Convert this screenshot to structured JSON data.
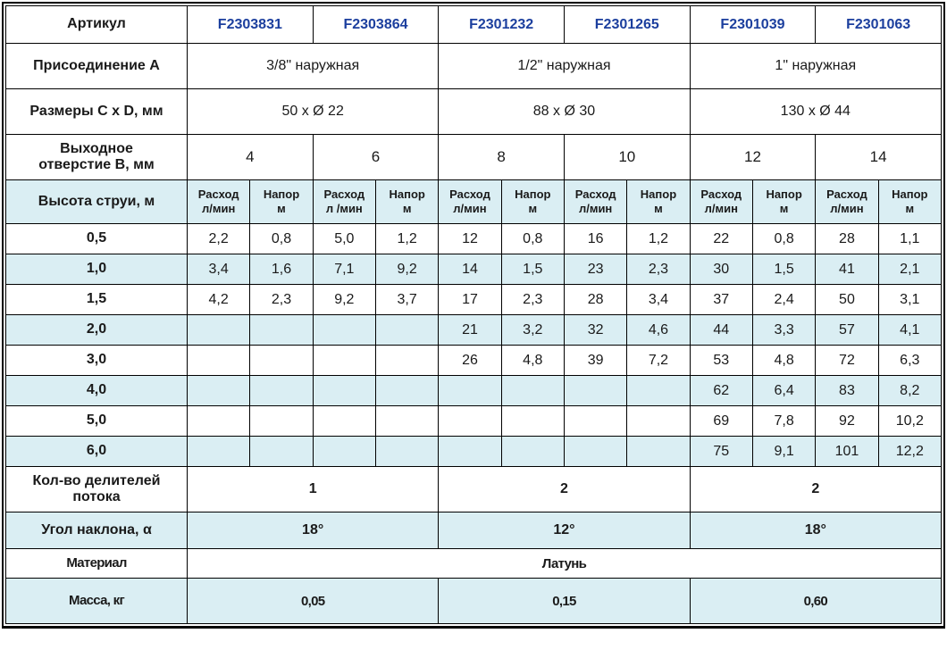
{
  "colors": {
    "row_shade": "#daeef3",
    "article_text": "#1c3f9e",
    "border": "#000000",
    "background": "#ffffff"
  },
  "chart_data": {
    "type": "table",
    "title": "",
    "note": "product specification table, commas are decimal separators",
    "articles": [
      "F2303831",
      "F2303864",
      "F2301232",
      "F2301265",
      "F2301039",
      "F2301063"
    ],
    "connection_A": [
      "3/8\" наружная",
      "1/2\" наружная",
      "1\" наружная"
    ],
    "dimensions_CxD_mm": [
      "50 x Ø 22",
      "88 x Ø 30",
      "130 x Ø 44"
    ],
    "outlet_B_mm": [
      "4",
      "6",
      "8",
      "10",
      "12",
      "14"
    ],
    "jet_height_m": [
      "0,5",
      "1,0",
      "1,5",
      "2,0",
      "3,0",
      "4,0",
      "5,0",
      "6,0"
    ],
    "flow_dividers": [
      "1",
      "2",
      "2"
    ],
    "tilt_angle": [
      "18°",
      "12°",
      "18°"
    ],
    "material": "Латунь",
    "mass_kg": [
      "0,05",
      "0,15",
      "0,60"
    ]
  },
  "table": {
    "rows": [
      {
        "name": "article-row",
        "kind": "article",
        "shaded": false,
        "label": "Артикул",
        "cells": [
          {
            "text": "F2303831",
            "span": 2,
            "style": "article"
          },
          {
            "text": "F2303864",
            "span": 2,
            "style": "article"
          },
          {
            "text": "F2301232",
            "span": 2,
            "style": "article"
          },
          {
            "text": "F2301265",
            "span": 2,
            "style": "article"
          },
          {
            "text": "F2301039",
            "span": 2,
            "style": "article"
          },
          {
            "text": "F2301063",
            "span": 2,
            "style": "article"
          }
        ]
      },
      {
        "name": "connection-row",
        "kind": "section",
        "shaded": false,
        "label": "Присоединение A",
        "cells": [
          {
            "text": "3/8\" наружная",
            "span": 4
          },
          {
            "text": "1/2\" наружная",
            "span": 4
          },
          {
            "text": "1\" наружная",
            "span": 4
          }
        ]
      },
      {
        "name": "dimensions-row",
        "kind": "section",
        "shaded": false,
        "label": "Размеры C x D, мм",
        "cells": [
          {
            "text": "50 x Ø 22",
            "span": 4
          },
          {
            "text": "88 x Ø 30",
            "span": 4
          },
          {
            "text": "130 x Ø 44",
            "span": 4
          }
        ]
      },
      {
        "name": "outlet-row",
        "kind": "outlet",
        "shaded": false,
        "label": "Выходное\nотверстие B, мм",
        "cells": [
          {
            "text": "4",
            "span": 2
          },
          {
            "text": "6",
            "span": 2
          },
          {
            "text": "8",
            "span": 2
          },
          {
            "text": "10",
            "span": 2
          },
          {
            "text": "12",
            "span": 2
          },
          {
            "text": "14",
            "span": 2
          }
        ]
      },
      {
        "name": "jet-header-row",
        "kind": "subhead",
        "shaded": true,
        "label": "Высота струи, м",
        "cells": [
          {
            "text": "Расход\nл/мин"
          },
          {
            "text": "Напор\nм"
          },
          {
            "text": "Расход\nл /мин"
          },
          {
            "text": "Напор\nм"
          },
          {
            "text": "Расход\nл/мин"
          },
          {
            "text": "Напор\nм"
          },
          {
            "text": "Расход\nл/мин"
          },
          {
            "text": "Напор\nм"
          },
          {
            "text": "Расход\nл/мин"
          },
          {
            "text": "Напор\nм"
          },
          {
            "text": "Расход\nл/мин"
          },
          {
            "text": "Напор\nм"
          }
        ]
      },
      {
        "name": "jet-row-0-5",
        "kind": "data",
        "shaded": false,
        "label": "0,5",
        "cells": [
          {
            "text": "2,2"
          },
          {
            "text": "0,8"
          },
          {
            "text": "5,0"
          },
          {
            "text": "1,2"
          },
          {
            "text": "12"
          },
          {
            "text": "0,8"
          },
          {
            "text": "16"
          },
          {
            "text": "1,2"
          },
          {
            "text": "22"
          },
          {
            "text": "0,8"
          },
          {
            "text": "28"
          },
          {
            "text": "1,1"
          }
        ]
      },
      {
        "name": "jet-row-1-0",
        "kind": "data",
        "shaded": true,
        "label": "1,0",
        "cells": [
          {
            "text": "3,4"
          },
          {
            "text": "1,6"
          },
          {
            "text": "7,1"
          },
          {
            "text": "9,2"
          },
          {
            "text": "14"
          },
          {
            "text": "1,5"
          },
          {
            "text": "23"
          },
          {
            "text": "2,3"
          },
          {
            "text": "30"
          },
          {
            "text": "1,5"
          },
          {
            "text": "41"
          },
          {
            "text": "2,1"
          }
        ]
      },
      {
        "name": "jet-row-1-5",
        "kind": "data",
        "shaded": false,
        "label": "1,5",
        "cells": [
          {
            "text": "4,2"
          },
          {
            "text": "2,3"
          },
          {
            "text": "9,2"
          },
          {
            "text": "3,7"
          },
          {
            "text": "17"
          },
          {
            "text": "2,3"
          },
          {
            "text": "28"
          },
          {
            "text": "3,4"
          },
          {
            "text": "37"
          },
          {
            "text": "2,4"
          },
          {
            "text": "50"
          },
          {
            "text": "3,1"
          }
        ]
      },
      {
        "name": "jet-row-2-0",
        "kind": "data",
        "shaded": true,
        "label": "2,0",
        "cells": [
          {
            "text": ""
          },
          {
            "text": ""
          },
          {
            "text": ""
          },
          {
            "text": ""
          },
          {
            "text": "21"
          },
          {
            "text": "3,2"
          },
          {
            "text": "32"
          },
          {
            "text": "4,6"
          },
          {
            "text": "44"
          },
          {
            "text": "3,3"
          },
          {
            "text": "57"
          },
          {
            "text": "4,1"
          }
        ]
      },
      {
        "name": "jet-row-3-0",
        "kind": "data",
        "shaded": false,
        "label": "3,0",
        "cells": [
          {
            "text": ""
          },
          {
            "text": ""
          },
          {
            "text": ""
          },
          {
            "text": ""
          },
          {
            "text": "26"
          },
          {
            "text": "4,8"
          },
          {
            "text": "39"
          },
          {
            "text": "7,2"
          },
          {
            "text": "53"
          },
          {
            "text": "4,8"
          },
          {
            "text": "72"
          },
          {
            "text": "6,3"
          }
        ]
      },
      {
        "name": "jet-row-4-0",
        "kind": "data",
        "shaded": true,
        "label": "4,0",
        "cells": [
          {
            "text": ""
          },
          {
            "text": ""
          },
          {
            "text": ""
          },
          {
            "text": ""
          },
          {
            "text": ""
          },
          {
            "text": ""
          },
          {
            "text": ""
          },
          {
            "text": ""
          },
          {
            "text": "62"
          },
          {
            "text": "6,4"
          },
          {
            "text": "83"
          },
          {
            "text": "8,2"
          }
        ]
      },
      {
        "name": "jet-row-5-0",
        "kind": "data",
        "shaded": false,
        "label": "5,0",
        "cells": [
          {
            "text": ""
          },
          {
            "text": ""
          },
          {
            "text": ""
          },
          {
            "text": ""
          },
          {
            "text": ""
          },
          {
            "text": ""
          },
          {
            "text": ""
          },
          {
            "text": ""
          },
          {
            "text": "69"
          },
          {
            "text": "7,8"
          },
          {
            "text": "92"
          },
          {
            "text": "10,2"
          }
        ]
      },
      {
        "name": "jet-row-6-0",
        "kind": "data",
        "shaded": true,
        "label": "6,0",
        "cells": [
          {
            "text": ""
          },
          {
            "text": ""
          },
          {
            "text": ""
          },
          {
            "text": ""
          },
          {
            "text": ""
          },
          {
            "text": ""
          },
          {
            "text": ""
          },
          {
            "text": ""
          },
          {
            "text": "75"
          },
          {
            "text": "9,1"
          },
          {
            "text": "101"
          },
          {
            "text": "12,2"
          }
        ]
      },
      {
        "name": "dividers-row",
        "kind": "dividers",
        "shaded": false,
        "label": "Кол-во делителей\nпотока",
        "cells": [
          {
            "text": "1",
            "span": 4
          },
          {
            "text": "2",
            "span": 4
          },
          {
            "text": "2",
            "span": 4
          }
        ]
      },
      {
        "name": "angle-row",
        "kind": "angle",
        "shaded": true,
        "label": "Угол наклона, α",
        "cells": [
          {
            "text": "18°",
            "span": 4
          },
          {
            "text": "12°",
            "span": 4
          },
          {
            "text": "18°",
            "span": 4
          }
        ]
      },
      {
        "name": "material-row",
        "kind": "material",
        "shaded": false,
        "label": "Материал",
        "cells": [
          {
            "text": "Латунь",
            "span": 12
          }
        ]
      },
      {
        "name": "mass-row",
        "kind": "mass",
        "shaded": true,
        "label": "Масса, кг",
        "cells": [
          {
            "text": "0,05",
            "span": 4
          },
          {
            "text": "0,15",
            "span": 4
          },
          {
            "text": "0,60",
            "span": 4
          }
        ]
      }
    ]
  }
}
